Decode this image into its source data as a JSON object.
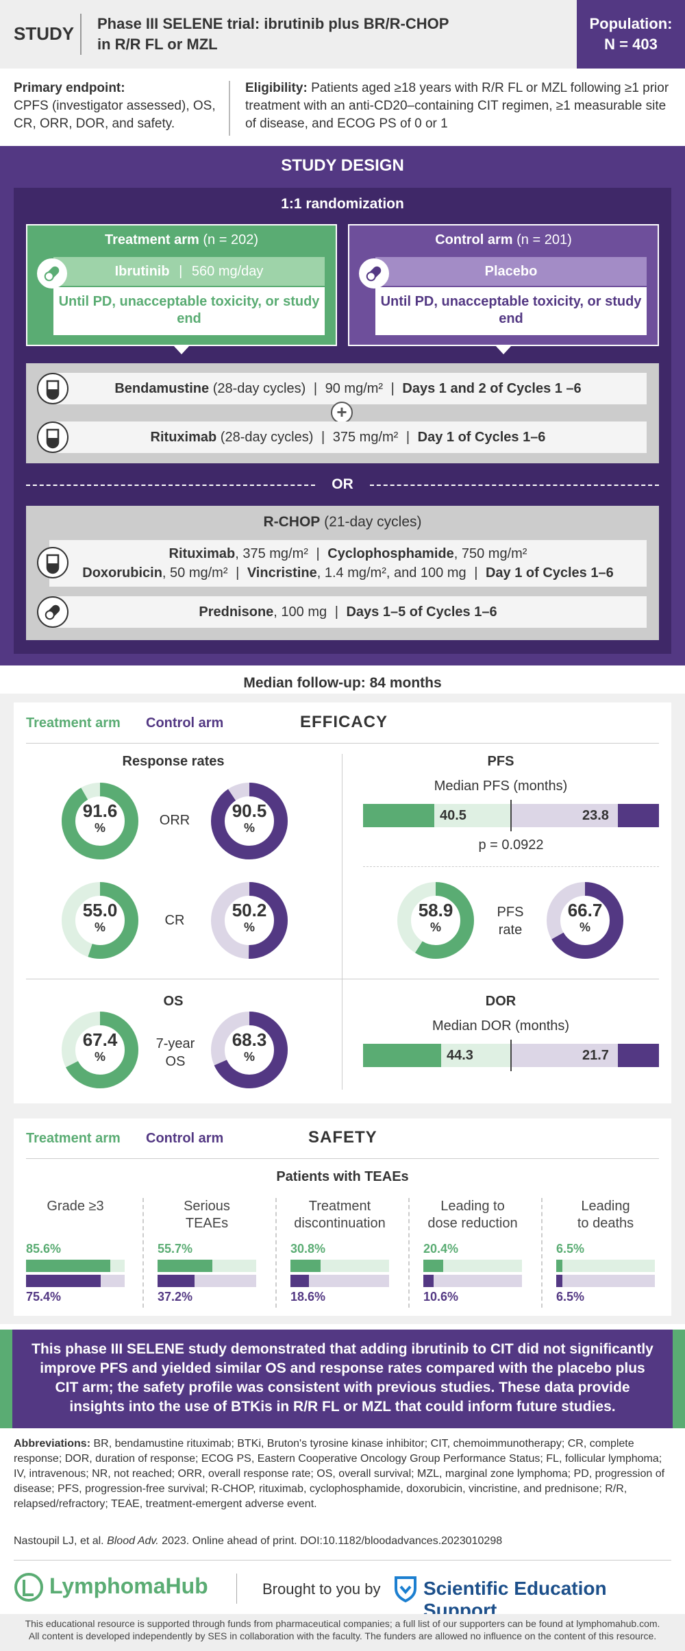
{
  "header": {
    "study_label": "STUDY",
    "title_line1": "Phase III SELENE trial: ibrutinib plus BR/R-CHOP",
    "title_line2": "in R/R FL or MZL",
    "population_label": "Population:",
    "population_value": "N = 403"
  },
  "endpoints": {
    "primary_label": "Primary endpoint:",
    "primary_text": "CPFS (investigator assessed), OS, CR, ORR, DOR, and safety.",
    "eligibility_label": "Eligibility:",
    "eligibility_text": "Patients aged ≥18 years with R/R FL or MZL following ≥1 prior treatment with an anti-CD20–containing CIT regimen, ≥1 measurable site of disease, and ECOG PS of 0 or 1"
  },
  "design": {
    "title": "STUDY DESIGN",
    "randomization": "1:1 randomization",
    "treatment_arm": {
      "name": "Treatment arm",
      "n": "(n = 202)",
      "drug": "Ibrutinib",
      "dose": "560 mg/day",
      "until": "Until PD, unacceptable toxicity, or study end"
    },
    "control_arm": {
      "name": "Control arm",
      "n": "(n = 201)",
      "drug": "Placebo",
      "until": "Until PD, unacceptable toxicity, or study end"
    },
    "br": {
      "benda_name": "Bendamustine",
      "benda_cycle": "(28-day cycles)",
      "benda_dose": "90 mg/m²",
      "benda_days": "Days 1 and 2 of Cycles 1 –6",
      "plus": "+",
      "ritux_name": "Rituximab",
      "ritux_cycle": "(28-day cycles)",
      "ritux_dose": "375 mg/m²",
      "ritux_days": "Day 1 of Cycles 1–6"
    },
    "or": "OR",
    "rchop": {
      "title_bold": "R-CHOP",
      "title_rest": "(21-day cycles)",
      "ritux_name": "Rituximab",
      "ritux_dose": ", 375 mg/m²",
      "cyclo_name": "Cyclophosphamide",
      "cyclo_dose": ", 750 mg/m²",
      "doxo_name": "Doxorubicin",
      "doxo_dose": ", 50 mg/m²",
      "vinc_name": "Vincristine",
      "vinc_dose": ", 1.4 mg/m², and 100 mg",
      "days": "Day 1 of Cycles 1–6",
      "pred_name": "Prednisone",
      "pred_dose": ", 100 mg",
      "pred_days": "Days 1–5 of Cycles 1–6"
    }
  },
  "efficacy": {
    "followup": "Median follow-up: 84 months",
    "legend_treatment": "Treatment arm",
    "legend_control": "Control arm",
    "title": "EFFICACY",
    "response_title": "Response rates",
    "orr_label": "ORR",
    "orr_t": 91.6,
    "orr_c": 90.5,
    "cr_label": "CR",
    "cr_t": 55.0,
    "cr_c": 50.2,
    "pfs_title": "PFS",
    "pfs_median_label": "Median PFS (months)",
    "pfs_t": "40.5",
    "pfs_c": "23.8",
    "pfs_p": "p = 0.0922",
    "pfs_rate_label1": "PFS",
    "pfs_rate_label2": "rate",
    "pfs_rate_t": 58.9,
    "pfs_rate_c": 66.7,
    "os_title": "OS",
    "os_label1": "7-year",
    "os_label2": "OS",
    "os_t": 67.4,
    "os_c": 68.3,
    "dor_title": "DOR",
    "dor_median_label": "Median DOR (months)",
    "dor_t": "44.3",
    "dor_c": "21.7",
    "pct": "%"
  },
  "safety": {
    "legend_treatment": "Treatment arm",
    "legend_control": "Control arm",
    "title": "SAFETY",
    "subtitle": "Patients with TEAEs",
    "items": [
      {
        "label1": "Grade ≥3",
        "label2": "",
        "t": "85.6",
        "c": "75.4"
      },
      {
        "label1": "Serious",
        "label2": "TEAEs",
        "t": "55.7",
        "c": "37.2"
      },
      {
        "label1": "Treatment",
        "label2": "discontinuation",
        "t": "30.8",
        "c": "18.6"
      },
      {
        "label1": "Leading to",
        "label2": "dose reduction",
        "t": "20.4",
        "c": "10.6"
      },
      {
        "label1": "Leading",
        "label2": "to deaths",
        "t": "6.5",
        "c": "6.5"
      }
    ]
  },
  "conclusion": "This phase III SELENE study demonstrated that adding ibrutinib to CIT did not significantly improve PFS and yielded similar OS and response rates compared with the placebo plus CIT arm; the safety profile was consistent with previous studies. These data provide insights into the use of BTKis in R/R FL or MZL that could inform future studies.",
  "abbreviations_label": "Abbreviations:",
  "abbreviations": "BR, bendamustine rituximab; BTKi, Bruton's tyrosine kinase inhibitor; CIT, chemoimmunotherapy; CR, complete response; DOR, duration of response; ECOG PS, Eastern Cooperative Oncology Group Performance Status; FL, follicular lymphoma; IV, intravenous; NR, not reached; ORR, overall response rate; OS, overall survival; MZL, marginal zone lymphoma; PD, progression of disease; PFS, progression-free survival; R-CHOP, rituximab, cyclophosphamide, doxorubicin, vincristine, and prednisone; R/R, relapsed/refractory; TEAE, treatment-emergent adverse event.",
  "reference": {
    "authors": "Nastoupil LJ, et al.",
    "journal": "Blood Adv.",
    "rest": "2023. Online ahead of print. DOI:10.1182/bloodadvances.2023010298"
  },
  "footer": {
    "logo": "LymphomaHub",
    "brought": "Brought to you by",
    "ses": "Scientific Education Support",
    "disclaimer1": "This educational resource is supported through funds from pharmaceutical companies; a full list of our supporters can be found at lymphomahub.com.",
    "disclaimer2": "All content is developed independently by SES in collaboration with the faculty. The funders are allowed no influence on the content of this resource."
  },
  "colors": {
    "treatment": "#5aac73",
    "treatment_light": "#dff0e3",
    "control": "#533883",
    "control_light": "#dcd6e6"
  }
}
